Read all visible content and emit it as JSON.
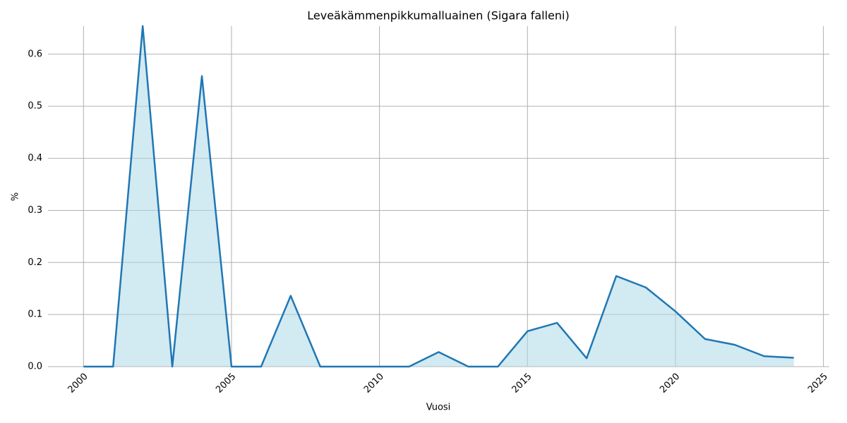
{
  "chart_data": {
    "type": "area",
    "title": "Leveäkämmenpikkumalluainen (Sigara falleni)",
    "xlabel": "Vuosi",
    "ylabel": "%",
    "x": [
      2000,
      2001,
      2002,
      2003,
      2004,
      2005,
      2006,
      2007,
      2008,
      2009,
      2010,
      2011,
      2012,
      2013,
      2014,
      2015,
      2016,
      2017,
      2018,
      2019,
      2020,
      2021,
      2022,
      2023,
      2024
    ],
    "series": [
      {
        "name": "%",
        "color": "#1f77b4",
        "fill": "#add8e6",
        "values": [
          0,
          0,
          0.654,
          0,
          0.558,
          0,
          0,
          0.136,
          0,
          0,
          0,
          0,
          0.028,
          0,
          0,
          0.068,
          0.084,
          0.016,
          0.174,
          0.152,
          0.106,
          0.053,
          0.042,
          0.02,
          0.017
        ]
      }
    ],
    "xlim": [
      1998.8,
      2025.2
    ],
    "xticks": [
      2000,
      2005,
      2010,
      2015,
      2020,
      2025
    ],
    "ylim": [
      0,
      0.654
    ],
    "yticks": [
      {
        "value": 0,
        "label": "0.0"
      },
      0.1,
      0.2,
      0.3,
      0.4,
      0.5,
      0.6
    ],
    "grid": true
  }
}
